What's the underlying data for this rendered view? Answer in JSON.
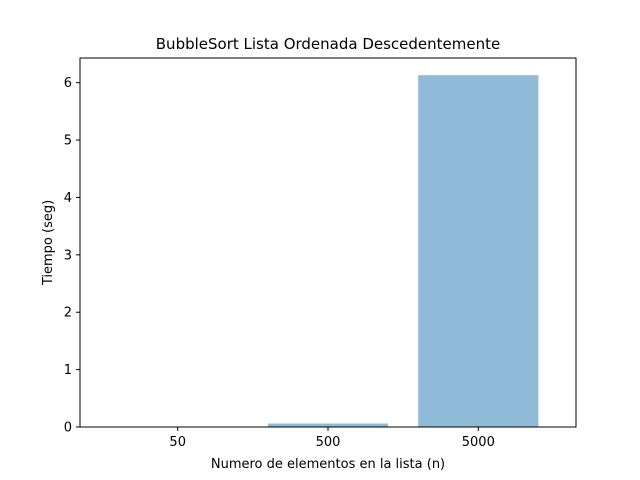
{
  "chart_data": {
    "type": "bar",
    "title": "BubbleSort Lista Ordenada Descedentemente",
    "xlabel": "Numero de elementos en la lista (n)",
    "ylabel": "Tiempo (seg)",
    "categories": [
      "50",
      "500",
      "5000"
    ],
    "values": [
      0.0005,
      0.06,
      6.13
    ],
    "ylim": [
      0,
      6.43
    ],
    "yticks": [
      0,
      1,
      2,
      3,
      4,
      5,
      6
    ],
    "bar_color": "#8fbbd9",
    "grid": false,
    "legend": "none"
  }
}
